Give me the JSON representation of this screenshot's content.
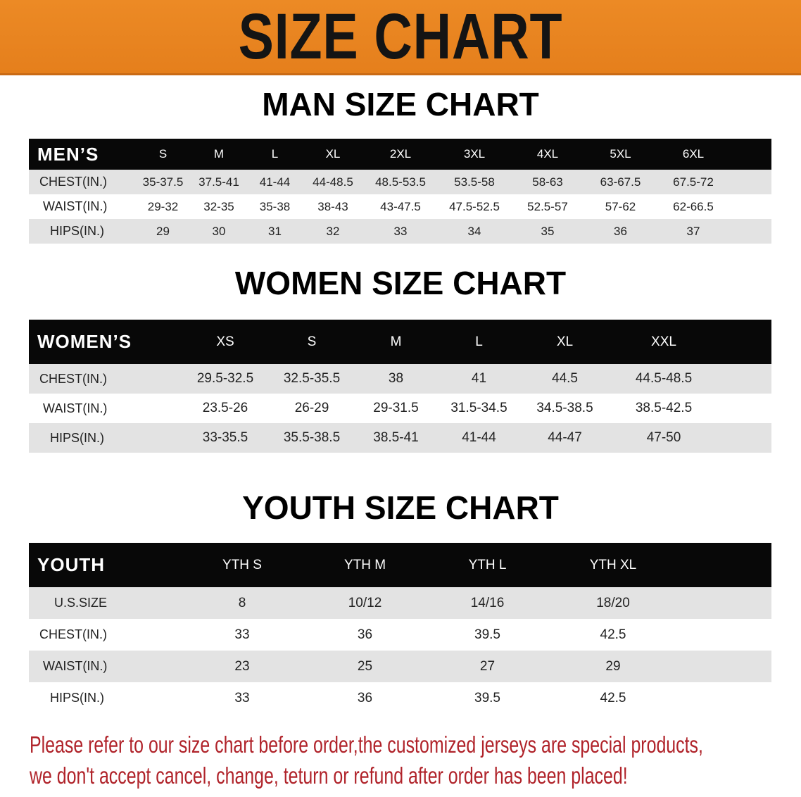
{
  "banner": {
    "title": "SIZE CHART",
    "color": "#e8841f"
  },
  "men": {
    "title": "MAN SIZE CHART",
    "header": [
      "MEN’S",
      "S",
      "M",
      "L",
      "XL",
      "2XL",
      "3XL",
      "4XL",
      "5XL",
      "6XL"
    ],
    "rows": [
      {
        "label": "CHEST(IN.)",
        "values": [
          "35-37.5",
          "37.5-41",
          "41-44",
          "44-48.5",
          "48.5-53.5",
          "53.5-58",
          "58-63",
          "63-67.5",
          "67.5-72"
        ]
      },
      {
        "label": "WAIST(IN.)",
        "values": [
          "29-32",
          "32-35",
          "35-38",
          "38-43",
          "43-47.5",
          "47.5-52.5",
          "52.5-57",
          "57-62",
          "62-66.5"
        ]
      },
      {
        "label": "HIPS(IN.)",
        "values": [
          "29",
          "30",
          "31",
          "32",
          "33",
          "34",
          "35",
          "36",
          "37"
        ]
      }
    ]
  },
  "women": {
    "title": "WOMEN SIZE CHART",
    "header": [
      "WOMEN’S",
      "XS",
      "S",
      "M",
      "L",
      "XL",
      "XXL"
    ],
    "rows": [
      {
        "label": "CHEST(IN.)",
        "values": [
          "29.5-32.5",
          "32.5-35.5",
          "38",
          "41",
          "44.5",
          "44.5-48.5"
        ]
      },
      {
        "label": "WAIST(IN.)",
        "values": [
          "23.5-26",
          "26-29",
          "29-31.5",
          "31.5-34.5",
          "34.5-38.5",
          "38.5-42.5"
        ]
      },
      {
        "label": "HIPS(IN.)",
        "values": [
          "33-35.5",
          "35.5-38.5",
          "38.5-41",
          "41-44",
          "44-47",
          "47-50"
        ]
      }
    ]
  },
  "youth": {
    "title": "YOUTH SIZE CHART",
    "header": [
      "YOUTH",
      "YTH S",
      "YTH M",
      "YTH L",
      "YTH XL"
    ],
    "rows": [
      {
        "label": "U.S.SIZE",
        "values": [
          "8",
          "10/12",
          "14/16",
          "18/20"
        ]
      },
      {
        "label": "CHEST(IN.)",
        "values": [
          "33",
          "36",
          "39.5",
          "42.5"
        ]
      },
      {
        "label": "WAIST(IN.)",
        "values": [
          "23",
          "25",
          "27",
          "29"
        ]
      },
      {
        "label": "HIPS(IN.)",
        "values": [
          "33",
          "36",
          "39.5",
          "42.5"
        ]
      }
    ]
  },
  "notice": {
    "line1": "Please refer to our size chart before order,the customized jerseys are special products,",
    "line2": "we don't accept cancel, change, teturn or refund after order has been placed!",
    "color": "#b0232a"
  }
}
